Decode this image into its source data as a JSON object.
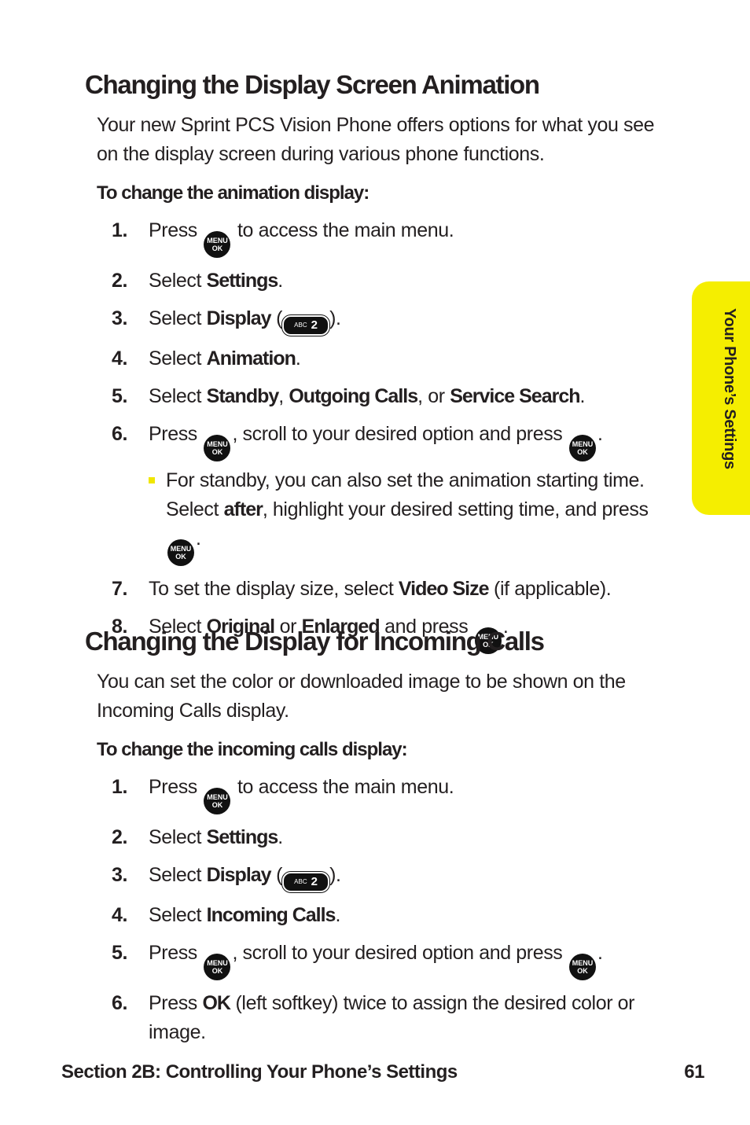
{
  "sections": [
    {
      "title": "Changing the Display Screen Animation",
      "intro": "Your new Sprint PCS Vision Phone offers options for what you see on the display screen during various phone functions.",
      "procedure": "To change the animation display:",
      "steps": [
        {
          "num": "1.",
          "parts": [
            {
              "text": "Press "
            },
            {
              "icon": "menu"
            },
            {
              "text": " to access the main menu."
            }
          ]
        },
        {
          "num": "2.",
          "parts": [
            {
              "text": "Select "
            },
            {
              "text": "Settings",
              "bold": true
            },
            {
              "text": "."
            }
          ]
        },
        {
          "num": "3.",
          "parts": [
            {
              "text": "Select "
            },
            {
              "text": "Display",
              "bold": true
            },
            {
              "text": " ("
            },
            {
              "icon": "abc2"
            },
            {
              "text": ")."
            }
          ]
        },
        {
          "num": "4.",
          "parts": [
            {
              "text": "Select "
            },
            {
              "text": "Animation",
              "bold": true
            },
            {
              "text": "."
            }
          ]
        },
        {
          "num": "5.",
          "parts": [
            {
              "text": "Select "
            },
            {
              "text": "Standby",
              "bold": true
            },
            {
              "text": ", "
            },
            {
              "text": "Outgoing Calls",
              "bold": true
            },
            {
              "text": ", or "
            },
            {
              "text": "Service Search",
              "bold": true
            },
            {
              "text": "."
            }
          ]
        },
        {
          "num": "6.",
          "parts": [
            {
              "text": "Press "
            },
            {
              "icon": "menu"
            },
            {
              "text": ", scroll to your desired option and press "
            },
            {
              "icon": "menu"
            },
            {
              "text": "."
            }
          ],
          "bullets": [
            {
              "parts": [
                {
                  "text": "For standby, you can also set the animation starting time. Select "
                },
                {
                  "text": "after",
                  "bold": true
                },
                {
                  "text": ", highlight your desired setting time, and press "
                },
                {
                  "icon": "menu"
                },
                {
                  "text": "."
                }
              ]
            }
          ]
        },
        {
          "num": "7.",
          "parts": [
            {
              "text": "To set the display size, select "
            },
            {
              "text": "Video Size",
              "bold": true
            },
            {
              "text": " (if applicable)."
            }
          ]
        },
        {
          "num": "8.",
          "parts": [
            {
              "text": "Select "
            },
            {
              "text": "Original",
              "bold": true
            },
            {
              "text": " or "
            },
            {
              "text": "Enlarged",
              "bold": true
            },
            {
              "text": " and press "
            },
            {
              "icon": "menu"
            },
            {
              "text": "."
            }
          ]
        }
      ]
    },
    {
      "title": "Changing the Display for Incoming Calls",
      "intro": "You can set the color or downloaded image to be shown on the Incoming Calls display.",
      "procedure": "To change the incoming calls display:",
      "steps": [
        {
          "num": "1.",
          "parts": [
            {
              "text": "Press "
            },
            {
              "icon": "menu"
            },
            {
              "text": " to access the main menu."
            }
          ]
        },
        {
          "num": "2.",
          "parts": [
            {
              "text": "Select "
            },
            {
              "text": "Settings",
              "bold": true
            },
            {
              "text": "."
            }
          ]
        },
        {
          "num": "3.",
          "parts": [
            {
              "text": "Select "
            },
            {
              "text": "Display",
              "bold": true
            },
            {
              "text": " ("
            },
            {
              "icon": "abc2"
            },
            {
              "text": ")."
            }
          ]
        },
        {
          "num": "4.",
          "parts": [
            {
              "text": "Select "
            },
            {
              "text": "Incoming Calls",
              "bold": true
            },
            {
              "text": "."
            }
          ]
        },
        {
          "num": "5.",
          "parts": [
            {
              "text": "Press "
            },
            {
              "icon": "menu"
            },
            {
              "text": ", scroll to your desired option and press "
            },
            {
              "icon": "menu"
            },
            {
              "text": "."
            }
          ]
        },
        {
          "num": "6.",
          "parts": [
            {
              "text": "Press "
            },
            {
              "text": "OK",
              "bold": true
            },
            {
              "text": " (left softkey) twice to assign the desired color or image."
            }
          ]
        }
      ]
    }
  ],
  "icons": {
    "menu": {
      "top": "MENU",
      "bottom": "OK"
    },
    "abc2": {
      "small": "ABC",
      "big": "2"
    }
  },
  "side_tab": "Your Phone’s Settings",
  "footer": {
    "section": "Section 2B: Controlling Your Phone’s Settings",
    "page": 61
  }
}
